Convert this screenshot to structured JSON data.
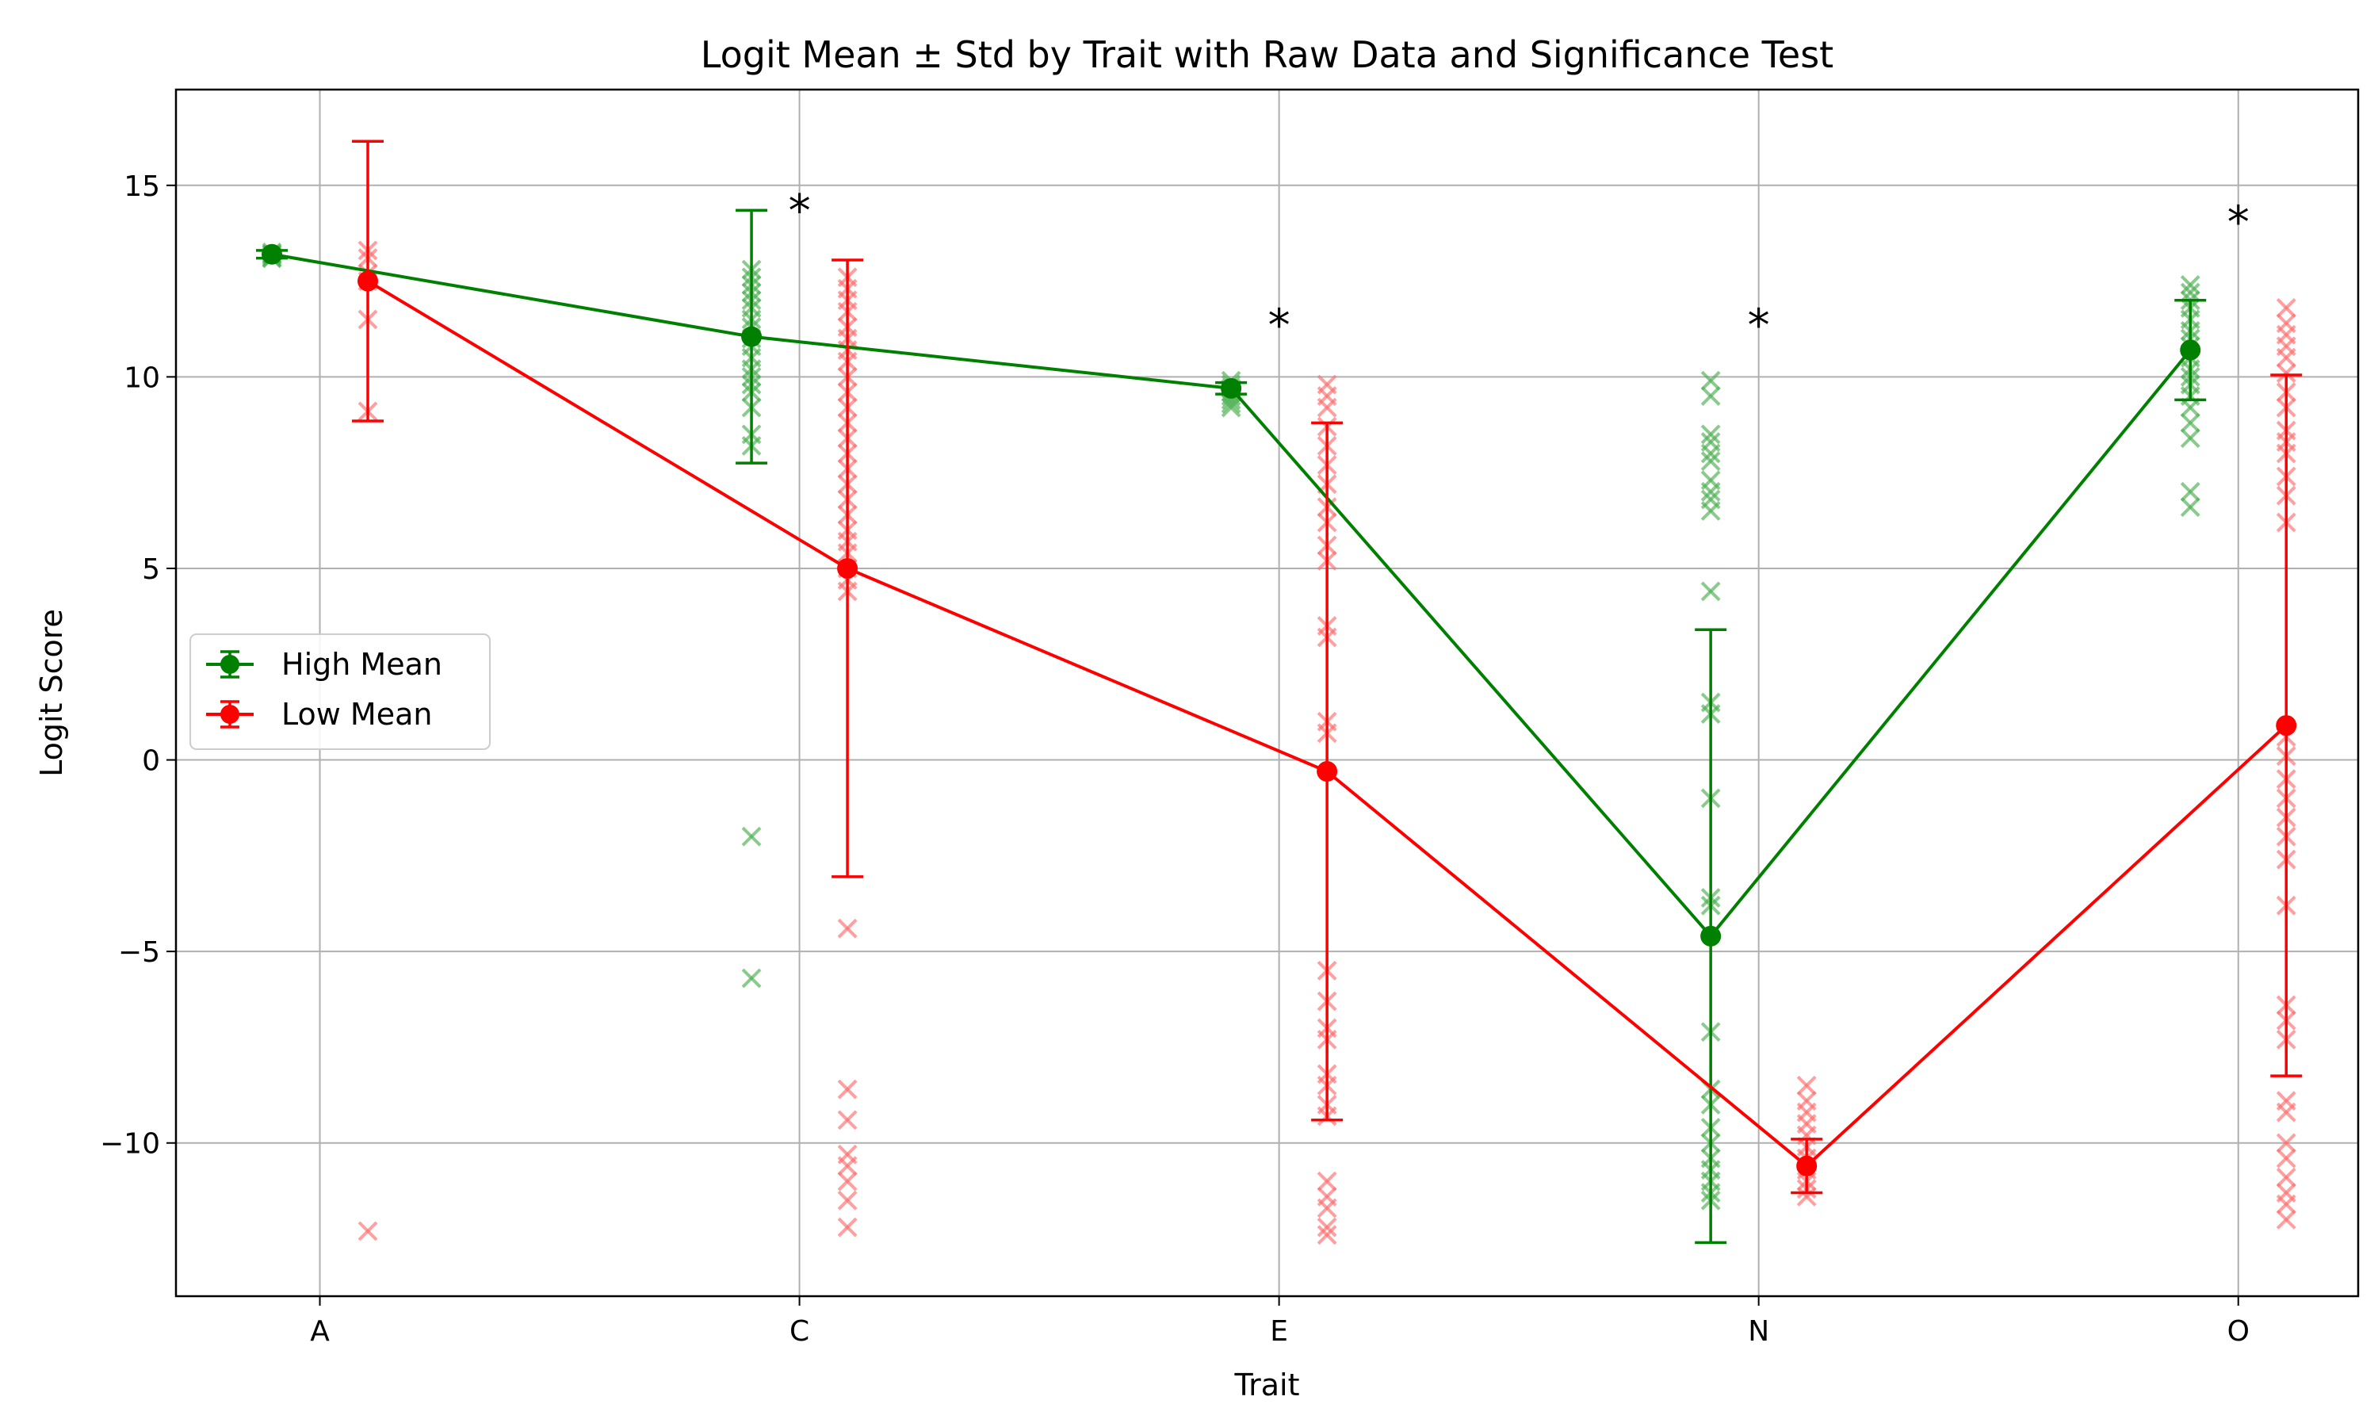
{
  "chart_data": {
    "type": "line",
    "title": "Logit Mean ± Std by Trait with Raw Data and Significance Test",
    "xlabel": "Trait",
    "ylabel": "Logit Score",
    "categories": [
      "A",
      "C",
      "E",
      "N",
      "O"
    ],
    "ylim": [
      -14,
      17.5
    ],
    "yticks": [
      -10,
      -5,
      0,
      5,
      10,
      15
    ],
    "ytick_labels": [
      "−10",
      "−5",
      "0",
      "5",
      "10",
      "15"
    ],
    "grid": true,
    "legend_position": "center-left",
    "series": [
      {
        "name": "High Mean",
        "color": "#008000",
        "scatter_color": "#4caf50",
        "offset": -0.1,
        "mean": [
          13.2,
          11.05,
          9.7,
          -4.6,
          10.7
        ],
        "std": [
          0.1,
          3.3,
          0.15,
          8.0,
          1.3
        ],
        "raw": [
          [
            13.1,
            13.2,
            13.15,
            13.25,
            13.1,
            13.2
          ],
          [
            12.8,
            12.6,
            12.4,
            12.2,
            12.0,
            11.8,
            11.5,
            11.3,
            11.0,
            10.8,
            10.5,
            10.2,
            10.0,
            9.8,
            9.6,
            9.2,
            8.5,
            8.2,
            -2.0,
            -5.7
          ],
          [
            9.9,
            9.8,
            9.7,
            9.6,
            9.5,
            9.4,
            9.3,
            9.2
          ],
          [
            9.9,
            9.5,
            8.5,
            8.3,
            8.0,
            7.8,
            7.3,
            7.0,
            6.8,
            6.5,
            4.4,
            1.5,
            1.2,
            -1.0,
            -3.6,
            -3.8,
            -7.1,
            -8.6,
            -9.0,
            -9.6,
            -10.0,
            -10.4,
            -10.7,
            -11.0,
            -11.3,
            -11.5
          ],
          [
            12.4,
            12.2,
            12.0,
            11.8,
            11.5,
            11.2,
            11.0,
            10.8,
            10.5,
            10.2,
            10.0,
            9.8,
            9.5,
            9.2,
            8.8,
            8.4,
            7.0,
            6.6
          ]
        ]
      },
      {
        "name": "Low Mean",
        "color": "#ff0000",
        "scatter_color": "#ff6b6b",
        "offset": 0.1,
        "mean": [
          12.5,
          5.0,
          -0.3,
          -10.6,
          0.9
        ],
        "std": [
          3.65,
          8.05,
          9.1,
          0.7,
          9.15
        ],
        "raw": [
          [
            13.3,
            13.1,
            12.7,
            12.5,
            11.5,
            9.1,
            -12.3
          ],
          [
            12.6,
            12.3,
            12.0,
            11.7,
            11.3,
            11.0,
            10.7,
            10.4,
            10.0,
            9.6,
            9.2,
            8.8,
            8.4,
            8.0,
            7.6,
            7.2,
            6.8,
            6.4,
            6.0,
            5.7,
            5.4,
            5.0,
            4.7,
            4.4,
            -4.4,
            -8.6,
            -9.4,
            -10.3,
            -10.6,
            -11.0,
            -11.5,
            -12.2
          ],
          [
            9.8,
            9.5,
            9.2,
            8.7,
            8.2,
            7.7,
            7.2,
            6.6,
            6.2,
            5.6,
            5.2,
            3.5,
            3.2,
            1.0,
            0.7,
            -5.5,
            -6.3,
            -7.0,
            -7.3,
            -8.2,
            -8.5,
            -9.0,
            -9.3,
            -11.0,
            -11.4,
            -11.7,
            -12.2,
            -12.4
          ],
          [
            -8.5,
            -8.9,
            -9.2,
            -9.5,
            -9.8,
            -10.1,
            -10.4,
            -10.7,
            -11.0,
            -11.2,
            -11.4
          ],
          [
            11.8,
            11.4,
            11.1,
            10.8,
            10.5,
            10.1,
            9.6,
            9.2,
            8.6,
            8.3,
            8.0,
            7.4,
            6.9,
            6.2,
            0.6,
            0.1,
            -0.5,
            -1.0,
            -1.5,
            -2.0,
            -2.6,
            -3.8,
            -6.4,
            -6.8,
            -7.3,
            -8.9,
            -9.2,
            -10.0,
            -10.4,
            -10.9,
            -11.3,
            -11.6,
            -12.0
          ]
        ]
      }
    ],
    "significance": [
      {
        "category": "C",
        "label": "*",
        "y": 14.4
      },
      {
        "category": "E",
        "label": "*",
        "y": 11.4
      },
      {
        "category": "N",
        "label": "*",
        "y": 11.4
      },
      {
        "category": "O",
        "label": "*",
        "y": 14.1
      }
    ]
  }
}
